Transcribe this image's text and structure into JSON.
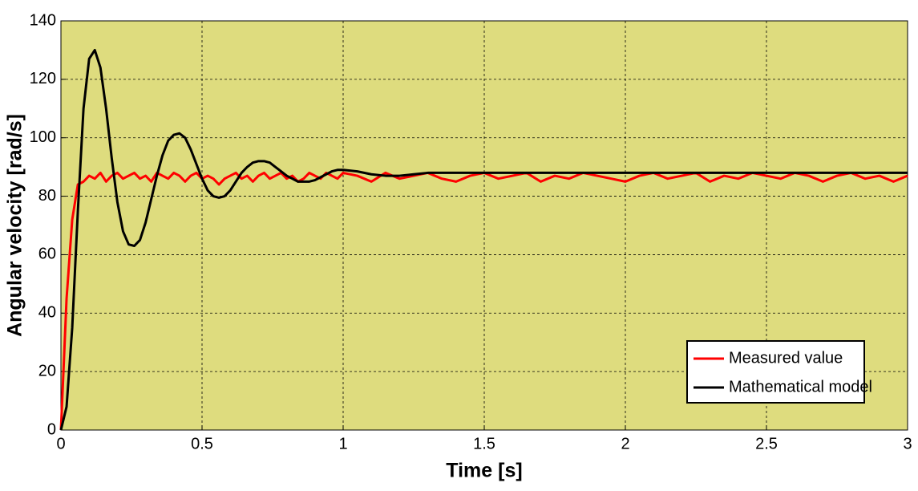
{
  "chart_data": {
    "type": "line",
    "xlabel": "Time [s]",
    "ylabel": "Angular velocity [rad/s]",
    "xlim": [
      0,
      3
    ],
    "ylim": [
      0,
      140
    ],
    "xticks": [
      0,
      0.5,
      1,
      1.5,
      2,
      2.5,
      3
    ],
    "yticks": [
      0,
      20,
      40,
      60,
      80,
      100,
      120,
      140
    ],
    "grid": true,
    "legend": "lower right",
    "x": [
      0,
      0.02,
      0.04,
      0.06,
      0.08,
      0.1,
      0.12,
      0.14,
      0.16,
      0.18,
      0.2,
      0.22,
      0.24,
      0.26,
      0.28,
      0.3,
      0.32,
      0.34,
      0.36,
      0.38,
      0.4,
      0.42,
      0.44,
      0.46,
      0.48,
      0.5,
      0.52,
      0.54,
      0.56,
      0.58,
      0.6,
      0.62,
      0.64,
      0.66,
      0.68,
      0.7,
      0.72,
      0.74,
      0.76,
      0.78,
      0.8,
      0.82,
      0.84,
      0.86,
      0.88,
      0.9,
      0.92,
      0.94,
      0.96,
      0.98,
      1,
      1.05,
      1.1,
      1.15,
      1.2,
      1.25,
      1.3,
      1.35,
      1.4,
      1.45,
      1.5,
      1.55,
      1.6,
      1.65,
      1.7,
      1.75,
      1.8,
      1.85,
      1.9,
      1.95,
      2,
      2.05,
      2.1,
      2.15,
      2.2,
      2.25,
      2.3,
      2.35,
      2.4,
      2.45,
      2.5,
      2.55,
      2.6,
      2.65,
      2.7,
      2.75,
      2.8,
      2.85,
      2.9,
      2.95,
      3
    ],
    "series": [
      {
        "name": "Measured value",
        "color": "#ff0000",
        "values": [
          0,
          45,
          72,
          84,
          85,
          87,
          86,
          88,
          85,
          87,
          88,
          86,
          87,
          88,
          86,
          87,
          85,
          88,
          87,
          86,
          88,
          87,
          85,
          87,
          88,
          86,
          87,
          86,
          84,
          86,
          87,
          88,
          86,
          87,
          85,
          87,
          88,
          86,
          87,
          88,
          86,
          87,
          85,
          86,
          88,
          87,
          86,
          88,
          87,
          86,
          88,
          87,
          85,
          88,
          86,
          87,
          88,
          86,
          85,
          87,
          88,
          86,
          87,
          88,
          85,
          87,
          86,
          88,
          87,
          86,
          85,
          87,
          88,
          86,
          87,
          88,
          85,
          87,
          86,
          88,
          87,
          86,
          88,
          87,
          85,
          87,
          88,
          86,
          87,
          85,
          87
        ]
      },
      {
        "name": "Mathematical model",
        "color": "#000000",
        "values": [
          0,
          8,
          35,
          75,
          110,
          127,
          130,
          124,
          110,
          93,
          78,
          68,
          63.5,
          63,
          65,
          71,
          79,
          87,
          94,
          99,
          101,
          101.5,
          100,
          96,
          91,
          86,
          82,
          80,
          79.5,
          80,
          82,
          85,
          88,
          90,
          91.5,
          92,
          92,
          91.5,
          90,
          88.5,
          87,
          86,
          85,
          85,
          85,
          85.5,
          86.5,
          87.5,
          88.5,
          89,
          89,
          88.5,
          87.5,
          87,
          87,
          87.5,
          88,
          88,
          88,
          88,
          88,
          88,
          88,
          88,
          88,
          88,
          88,
          88,
          88,
          88,
          88,
          88,
          88,
          88,
          88,
          88,
          88,
          88,
          88,
          88,
          88,
          88,
          88,
          88,
          88,
          88,
          88,
          88,
          88,
          88,
          88
        ]
      }
    ]
  }
}
